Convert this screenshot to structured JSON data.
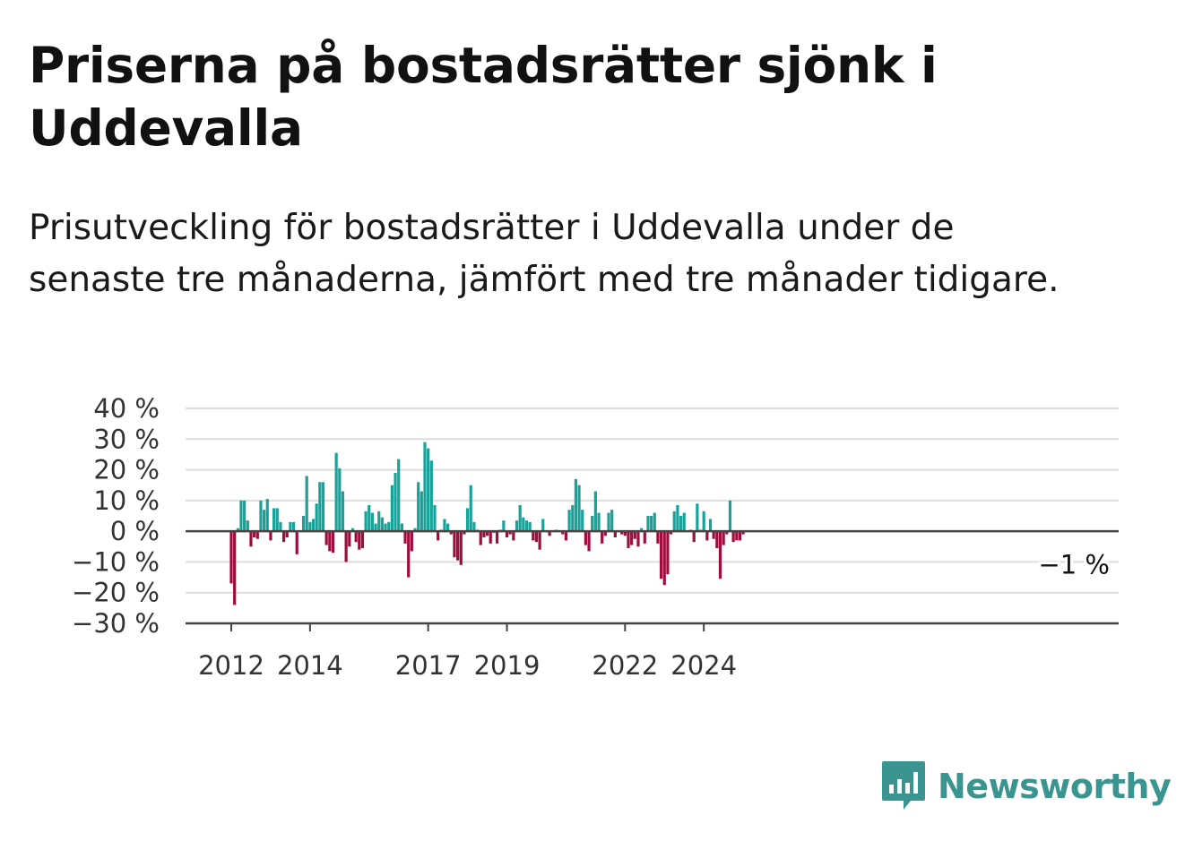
{
  "title": "Priserna på bostadsrätter sjönk i Uddevalla",
  "subtitle": "Prisutveckling för bostadsrätter i Uddevalla under de senaste tre månaderna, jämfört med tre månader tidigare.",
  "brand": {
    "name": "Newsworthy",
    "color": "#3a948f",
    "icon": "newsworthy-logo-icon"
  },
  "colors": {
    "positive": "#19a29a",
    "negative": "#9e0d3e",
    "grid": "#dddddd",
    "axis": "#444444"
  },
  "chart_data": {
    "type": "bar",
    "title": "Priserna på bostadsrätter sjönk i Uddevalla",
    "xlabel": "",
    "ylabel": "",
    "ylim": [
      -30,
      40
    ],
    "yticks": [
      40,
      30,
      20,
      10,
      0,
      -10,
      -20,
      -30
    ],
    "ytick_labels": [
      "40 %",
      "30 %",
      "20 %",
      "10 %",
      "0 %",
      "−10 %",
      "−20 %",
      "−30 %"
    ],
    "xticks": [
      2012,
      2014,
      2017,
      2019,
      2022,
      2024
    ],
    "x_start": "2012-01",
    "grid": true,
    "last_value_label": "−1 %",
    "series": [
      {
        "values": [
          -17,
          -24,
          1,
          10,
          10,
          3.5,
          -5,
          -2,
          -2.5,
          10,
          7,
          10.5,
          -3,
          7.5,
          7.5,
          3,
          -3.5,
          -2,
          3,
          3,
          -7.5,
          0,
          5,
          18,
          3,
          4,
          9,
          16,
          16,
          -4.5,
          -6.5,
          -7,
          25.5,
          20.5,
          13,
          -10,
          -5,
          1,
          -3.5,
          -6,
          -5.5,
          6.5,
          8.5,
          6,
          2.5,
          6.5,
          4.5,
          2.5,
          3,
          15,
          19,
          23.5,
          2.5,
          -4,
          -15,
          -6.5,
          1,
          16,
          13,
          29,
          27,
          23,
          8.5,
          -3,
          0.5,
          4,
          2.5,
          -1,
          -8.5,
          -9.5,
          -11,
          -1,
          7.5,
          15,
          3,
          0.5,
          -4.5,
          -2,
          -1.5,
          -4,
          -0.5,
          -4,
          0.5,
          3.5,
          -2,
          -1,
          -3,
          3.5,
          8.5,
          4.5,
          3.5,
          3,
          -3,
          -3.5,
          -6,
          4,
          0,
          -1.5,
          0,
          0.5,
          0,
          -1,
          -3,
          7,
          8.5,
          17,
          15,
          7,
          -4.5,
          -6.5,
          5,
          13,
          6,
          -4,
          -1.5,
          6,
          7,
          -2,
          0,
          -1,
          -1.5,
          -5.5,
          -4.5,
          -2.5,
          -5,
          1,
          -4,
          5,
          5,
          6,
          -4,
          -15.5,
          -17.5,
          -14,
          -1,
          6.5,
          8.5,
          5,
          6,
          0,
          0.5,
          -3.5,
          9,
          0.5,
          6.5,
          -3,
          4,
          -2.5,
          -5.5,
          -15.5,
          -4.5,
          -1,
          10,
          -3.5,
          -3,
          -3,
          -1
        ]
      }
    ]
  }
}
